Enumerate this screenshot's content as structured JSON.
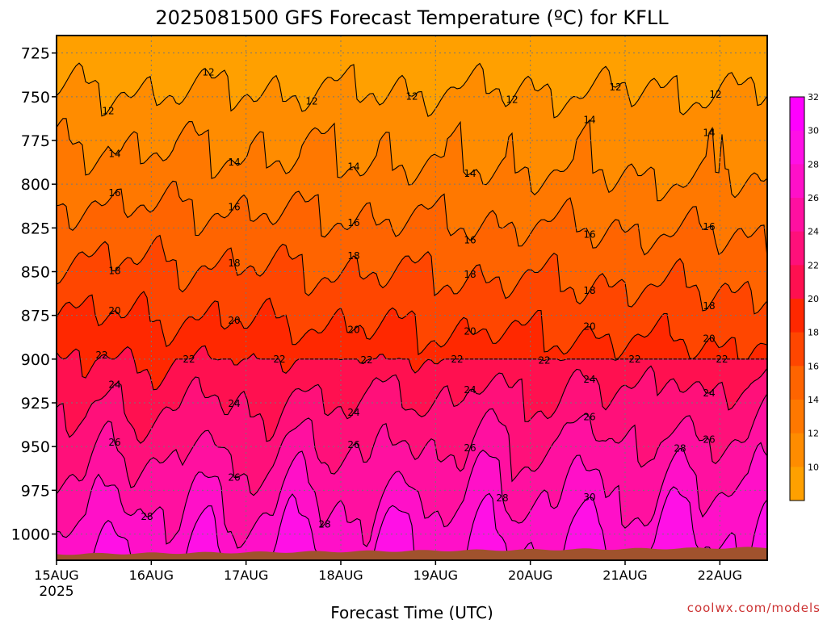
{
  "chart_data": {
    "type": "heatmap",
    "title": "2025081500 GFS Forecast Temperature (ºC) for KFLL",
    "xlabel": "Forecast Time (UTC)",
    "ylabel": "",
    "x_tick_labels": [
      "15AUG",
      "16AUG",
      "17AUG",
      "18AUG",
      "19AUG",
      "20AUG",
      "21AUG",
      "22AUG"
    ],
    "x_year_label": "2025",
    "y_tick_labels": [
      "725",
      "750",
      "775",
      "800",
      "825",
      "850",
      "875",
      "900",
      "925",
      "950",
      "975",
      "1000"
    ],
    "y_values_hpa": [
      725,
      750,
      775,
      800,
      825,
      850,
      875,
      900,
      925,
      950,
      975,
      1000
    ],
    "ylim": [
      1015,
      715
    ],
    "xlim_days": [
      0,
      7.5
    ],
    "grid": "dotted",
    "colorbar": {
      "ticks": [
        "10",
        "12",
        "14",
        "16",
        "18",
        "20",
        "22",
        "24",
        "26",
        "28",
        "30",
        "32"
      ],
      "colors": [
        "#ffa000",
        "#ff8c00",
        "#ff7800",
        "#ff6400",
        "#ff4600",
        "#ff2800",
        "#ff1050",
        "#ff107a",
        "#ff10a0",
        "#ff10c8",
        "#ff10e6",
        "#ff00ff"
      ]
    },
    "contour_levels": [
      12,
      14,
      16,
      18,
      20,
      22,
      24,
      26,
      28,
      30
    ],
    "contour_label_values": [
      "12",
      "12",
      "12",
      "12",
      "12",
      "12",
      "12",
      "14",
      "14",
      "14",
      "14",
      "14",
      "14",
      "16",
      "16",
      "16",
      "16",
      "16",
      "16",
      "18",
      "18",
      "18",
      "18",
      "18",
      "18",
      "20",
      "20",
      "20",
      "20",
      "20",
      "20",
      "22",
      "22",
      "22",
      "22",
      "22",
      "22",
      "22",
      "22",
      "24",
      "24",
      "24",
      "24",
      "24",
      "24",
      "26",
      "26",
      "26",
      "26",
      "26",
      "26",
      "28",
      "28",
      "28",
      "28",
      "30",
      "30"
    ],
    "surface_color": "#a0522d"
  },
  "watermark": "coolwx.com/models"
}
